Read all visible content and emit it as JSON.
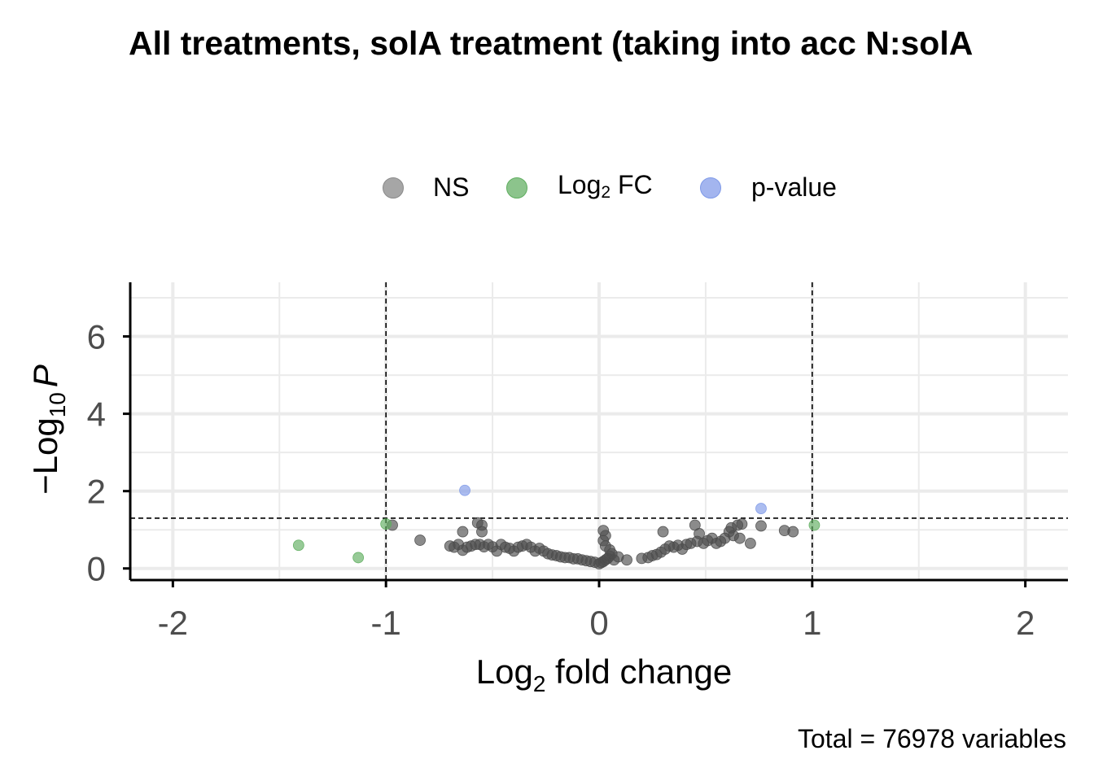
{
  "chart_data": {
    "type": "scatter",
    "title": "All treatments, solA treatment (taking into acc N:solA",
    "xlabel": {
      "base": "Log",
      "sub": "2",
      "rest": " fold change"
    },
    "ylabel": {
      "prefix": "−Log",
      "sub": "10",
      "var": "P"
    },
    "caption": "Total = 76978 variables",
    "xlim": [
      -2.2,
      2.2
    ],
    "ylim": [
      -0.3,
      7.4
    ],
    "x_ticks": [
      -2,
      -1,
      0,
      1,
      2
    ],
    "y_ticks": [
      0,
      2,
      4,
      6
    ],
    "x_tick_labels": [
      "-2",
      "-1",
      "0",
      "1",
      "2"
    ],
    "y_tick_labels": [
      "0",
      "2",
      "4",
      "6"
    ],
    "grid": true,
    "legend_position": "top",
    "fc_cutoff": [
      -1,
      1
    ],
    "p_cutoff": 1.3,
    "legend": [
      {
        "key": "NS",
        "label": "NS",
        "sub": "",
        "rest": "",
        "color": "#808080"
      },
      {
        "key": "FC",
        "label": "Log",
        "sub": "2",
        "rest": " FC",
        "color": "#5fae5f"
      },
      {
        "key": "P",
        "label": "p-value",
        "sub": "",
        "rest": "",
        "color": "#7f9ae8"
      }
    ],
    "series": [
      {
        "name": "NS",
        "color": "#4d4d4d",
        "points": [
          [
            -0.97,
            1.12
          ],
          [
            -0.84,
            0.73
          ],
          [
            -0.7,
            0.58
          ],
          [
            -0.68,
            0.55
          ],
          [
            -0.66,
            0.62
          ],
          [
            -0.64,
            0.47
          ],
          [
            -0.64,
            0.95
          ],
          [
            -0.62,
            0.55
          ],
          [
            -0.6,
            0.58
          ],
          [
            -0.58,
            0.62
          ],
          [
            -0.57,
            1.18
          ],
          [
            -0.55,
            1.12
          ],
          [
            -0.55,
            0.95
          ],
          [
            -0.56,
            0.62
          ],
          [
            -0.54,
            0.56
          ],
          [
            -0.52,
            0.62
          ],
          [
            -0.5,
            0.56
          ],
          [
            -0.48,
            0.45
          ],
          [
            -0.46,
            0.62
          ],
          [
            -0.44,
            0.55
          ],
          [
            -0.42,
            0.52
          ],
          [
            -0.4,
            0.45
          ],
          [
            -0.38,
            0.55
          ],
          [
            -0.36,
            0.58
          ],
          [
            -0.34,
            0.62
          ],
          [
            -0.32,
            0.55
          ],
          [
            -0.3,
            0.45
          ],
          [
            -0.28,
            0.52
          ],
          [
            -0.26,
            0.45
          ],
          [
            -0.24,
            0.38
          ],
          [
            -0.22,
            0.35
          ],
          [
            -0.2,
            0.33
          ],
          [
            -0.18,
            0.3
          ],
          [
            -0.16,
            0.28
          ],
          [
            -0.14,
            0.28
          ],
          [
            -0.12,
            0.25
          ],
          [
            -0.1,
            0.25
          ],
          [
            -0.08,
            0.22
          ],
          [
            -0.06,
            0.2
          ],
          [
            -0.04,
            0.18
          ],
          [
            -0.02,
            0.16
          ],
          [
            0.0,
            0.12
          ],
          [
            0.01,
            0.15
          ],
          [
            0.02,
            0.18
          ],
          [
            0.03,
            0.22
          ],
          [
            0.04,
            0.26
          ],
          [
            0.05,
            0.32
          ],
          [
            0.06,
            0.38
          ],
          [
            0.05,
            0.48
          ],
          [
            0.03,
            0.58
          ],
          [
            0.02,
            0.72
          ],
          [
            0.03,
            0.85
          ],
          [
            0.02,
            0.98
          ],
          [
            0.07,
            0.22
          ],
          [
            0.09,
            0.3
          ],
          [
            0.13,
            0.22
          ],
          [
            0.2,
            0.26
          ],
          [
            0.23,
            0.28
          ],
          [
            0.25,
            0.33
          ],
          [
            0.27,
            0.36
          ],
          [
            0.29,
            0.42
          ],
          [
            0.3,
            0.95
          ],
          [
            0.31,
            0.5
          ],
          [
            0.33,
            0.58
          ],
          [
            0.35,
            0.55
          ],
          [
            0.37,
            0.6
          ],
          [
            0.39,
            0.5
          ],
          [
            0.41,
            0.62
          ],
          [
            0.43,
            0.65
          ],
          [
            0.45,
            1.12
          ],
          [
            0.46,
            0.7
          ],
          [
            0.47,
            0.9
          ],
          [
            0.49,
            0.65
          ],
          [
            0.51,
            0.72
          ],
          [
            0.53,
            0.78
          ],
          [
            0.55,
            0.65
          ],
          [
            0.57,
            0.7
          ],
          [
            0.59,
            0.78
          ],
          [
            0.61,
            0.95
          ],
          [
            0.62,
            1.05
          ],
          [
            0.63,
            0.85
          ],
          [
            0.65,
            1.12
          ],
          [
            0.67,
            1.15
          ],
          [
            0.66,
            0.78
          ],
          [
            0.71,
            0.65
          ],
          [
            0.76,
            1.1
          ],
          [
            0.87,
            0.98
          ],
          [
            0.91,
            0.95
          ]
        ]
      },
      {
        "name": "Log2 FC",
        "color": "#5fae5f",
        "points": [
          [
            -1.41,
            0.6
          ],
          [
            -1.13,
            0.28
          ],
          [
            -1.0,
            1.15
          ],
          [
            1.01,
            1.12
          ]
        ]
      },
      {
        "name": "p-value",
        "color": "#7f9ae8",
        "points": [
          [
            -0.63,
            2.02
          ],
          [
            0.76,
            1.55
          ]
        ]
      }
    ]
  }
}
